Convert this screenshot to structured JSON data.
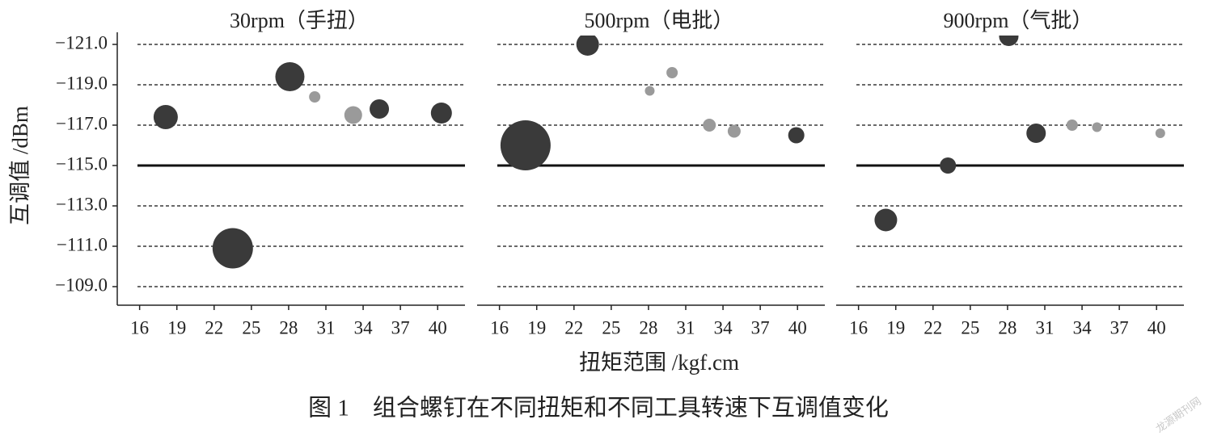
{
  "chart_data": [
    {
      "type": "scatter",
      "title": "30rpm（手扭）",
      "y_label": "互调值 /dBm",
      "x": [
        18.1,
        23.5,
        28.1,
        30.1,
        33.2,
        35.3,
        40.3
      ],
      "values": [
        -117.4,
        -110.9,
        -119.4,
        -118.4,
        -117.5,
        -117.8,
        -117.6
      ],
      "sizes": [
        15,
        25,
        18,
        7,
        11,
        12,
        13
      ],
      "colors": [
        "#3a3a3a",
        "#3a3a3a",
        "#3a3a3a",
        "#9a9a9a",
        "#9a9a9a",
        "#3a3a3a",
        "#3a3a3a"
      ],
      "xlim": [
        14.2,
        42.2
      ],
      "ylim": [
        -108.2,
        -121.6
      ],
      "xticks": [
        16,
        19,
        22,
        25,
        28,
        31,
        34,
        37,
        40
      ],
      "yticks": [
        {
          "value": -121,
          "label": "−121.0"
        },
        {
          "value": -119,
          "label": "−119.0"
        },
        {
          "value": -117,
          "label": "−117.0"
        },
        {
          "value": -115,
          "label": "−115.0"
        },
        {
          "value": -113,
          "label": "−113.0"
        },
        {
          "value": -111,
          "label": "−111.0"
        },
        {
          "value": -109,
          "label": "−109.0"
        }
      ],
      "hline": -115,
      "grid": true
    },
    {
      "type": "scatter",
      "title": "500rpm（电批）",
      "x_label": "扭矩范围 /kgf.cm",
      "x": [
        18.1,
        23.1,
        28.1,
        29.9,
        32.9,
        34.9,
        39.9
      ],
      "values": [
        -116.0,
        -121.0,
        -118.7,
        -119.6,
        -117.0,
        -116.7,
        -116.5
      ],
      "sizes": [
        31,
        14,
        6,
        7,
        8,
        8,
        10
      ],
      "colors": [
        "#3a3a3a",
        "#3a3a3a",
        "#9a9a9a",
        "#9a9a9a",
        "#9a9a9a",
        "#9a9a9a",
        "#3a3a3a"
      ],
      "xlim": [
        14.2,
        42.2
      ],
      "ylim": [
        -108.2,
        -121.6
      ],
      "xticks": [
        16,
        19,
        22,
        25,
        28,
        31,
        34,
        37,
        40
      ],
      "yticks": [
        -121,
        -119,
        -117,
        -115,
        -113,
        -111,
        -109
      ],
      "hline": -115,
      "grid": true
    },
    {
      "type": "scatter",
      "title": "900rpm（气批）",
      "x": [
        18.2,
        23.2,
        28.1,
        30.3,
        33.2,
        35.2,
        40.3
      ],
      "values": [
        -112.3,
        -115.0,
        -121.4,
        -116.6,
        -117.0,
        -116.9,
        -116.6
      ],
      "sizes": [
        14,
        10,
        12,
        12,
        7,
        6,
        6
      ],
      "colors": [
        "#3a3a3a",
        "#3a3a3a",
        "#3a3a3a",
        "#3a3a3a",
        "#9a9a9a",
        "#9a9a9a",
        "#9a9a9a"
      ],
      "xlim": [
        14.2,
        42.2
      ],
      "ylim": [
        -108.2,
        -121.6
      ],
      "xticks": [
        16,
        19,
        22,
        25,
        28,
        31,
        34,
        37,
        40
      ],
      "yticks": [
        -121,
        -119,
        -117,
        -115,
        -113,
        -111,
        -109
      ],
      "hline": -115,
      "grid": true
    }
  ],
  "caption": "图 1　组合螺钉在不同扭矩和不同工具转速下互调值变化",
  "watermark": "龙源期刊网"
}
